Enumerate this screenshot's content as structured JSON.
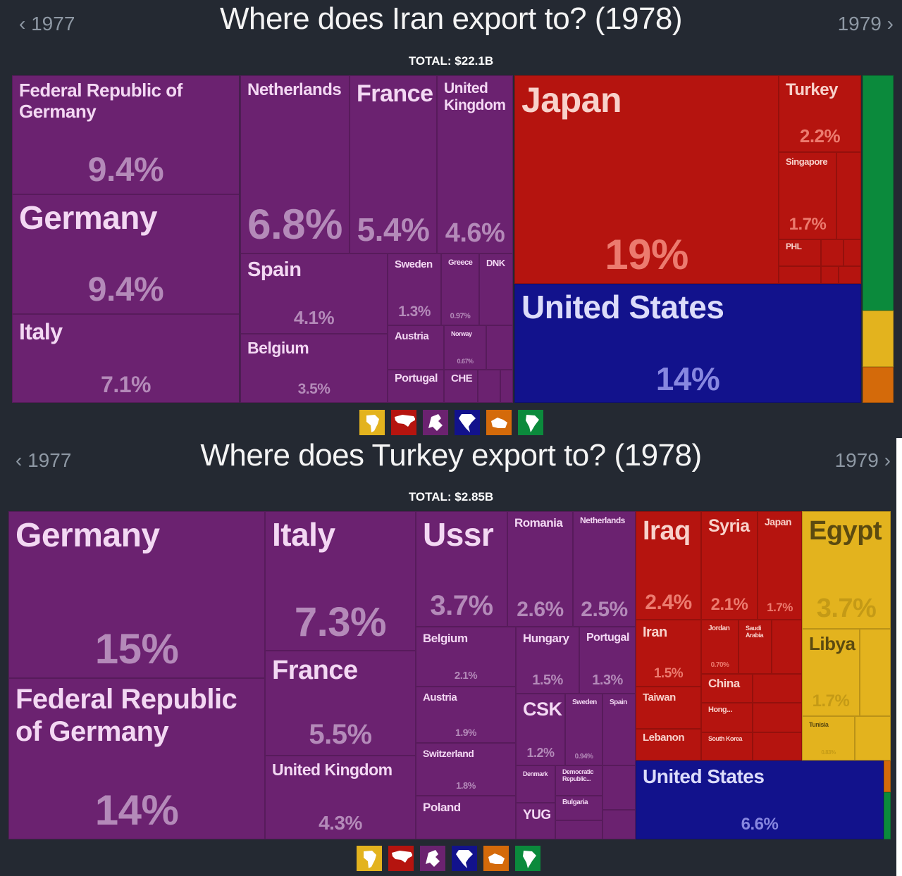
{
  "colors": {
    "europe": "#6b2270",
    "asia": "#b5140f",
    "namerica": "#12128c",
    "samerica": "#0b8a3c",
    "africa": "#e3b31e",
    "oceania": "#d46a0a"
  },
  "iran": {
    "prev": "‹ 1977",
    "next": "1979 ›",
    "title": "Where does Iran export to? (1978)",
    "total": "TOTAL: $22.1B",
    "cells": [
      {
        "name": "Federal Republic of Germany",
        "pct": "9.4%",
        "region": "europe"
      },
      {
        "name": "Germany",
        "pct": "9.4%",
        "region": "europe"
      },
      {
        "name": "Italy",
        "pct": "7.1%",
        "region": "europe"
      },
      {
        "name": "Netherlands",
        "pct": "6.8%",
        "region": "europe"
      },
      {
        "name": "France",
        "pct": "5.4%",
        "region": "europe"
      },
      {
        "name": "United Kingdom",
        "pct": "4.6%",
        "region": "europe"
      },
      {
        "name": "Spain",
        "pct": "4.1%",
        "region": "europe"
      },
      {
        "name": "Belgium",
        "pct": "3.5%",
        "region": "europe"
      },
      {
        "name": "Sweden",
        "pct": "1.3%",
        "region": "europe"
      },
      {
        "name": "Greece",
        "pct": "0.97%",
        "region": "europe"
      },
      {
        "name": "DNK",
        "pct": "",
        "region": "europe"
      },
      {
        "name": "Austria",
        "pct": "",
        "region": "europe"
      },
      {
        "name": "Norway",
        "pct": "0.67%",
        "region": "europe"
      },
      {
        "name": "",
        "pct": "",
        "region": "europe"
      },
      {
        "name": "Portugal",
        "pct": "",
        "region": "europe"
      },
      {
        "name": "CHE",
        "pct": "",
        "region": "europe"
      },
      {
        "name": "",
        "pct": "",
        "region": "europe"
      },
      {
        "name": "",
        "pct": "",
        "region": "europe"
      },
      {
        "name": "Japan",
        "pct": "19%",
        "region": "asia"
      },
      {
        "name": "Turkey",
        "pct": "2.2%",
        "region": "asia"
      },
      {
        "name": "Singapore",
        "pct": "1.7%",
        "region": "asia"
      },
      {
        "name": "",
        "pct": "",
        "region": "asia"
      },
      {
        "name": "PHL",
        "pct": "",
        "region": "asia"
      },
      {
        "name": "",
        "pct": "",
        "region": "asia"
      },
      {
        "name": "",
        "pct": "",
        "region": "asia"
      },
      {
        "name": "",
        "pct": "",
        "region": "asia"
      },
      {
        "name": "",
        "pct": "",
        "region": "asia"
      },
      {
        "name": "",
        "pct": "",
        "region": "asia"
      },
      {
        "name": "United States",
        "pct": "14%",
        "region": "namerica"
      },
      {
        "name": "",
        "pct": "",
        "region": "samerica"
      },
      {
        "name": "",
        "pct": "",
        "region": "africa"
      },
      {
        "name": "",
        "pct": "",
        "region": "oceania"
      }
    ]
  },
  "turkey": {
    "prev": "‹ 1977",
    "next": "1979 ›",
    "title": "Where does Turkey export to? (1978)",
    "total": "TOTAL: $2.85B",
    "cells": [
      {
        "name": "Germany",
        "pct": "15%",
        "region": "europe"
      },
      {
        "name": "Federal Republic of Germany",
        "pct": "14%",
        "region": "europe"
      },
      {
        "name": "Italy",
        "pct": "7.3%",
        "region": "europe"
      },
      {
        "name": "France",
        "pct": "5.5%",
        "region": "europe"
      },
      {
        "name": "United Kingdom",
        "pct": "4.3%",
        "region": "europe"
      },
      {
        "name": "Ussr",
        "pct": "3.7%",
        "region": "europe"
      },
      {
        "name": "Romania",
        "pct": "2.6%",
        "region": "europe"
      },
      {
        "name": "Netherlands",
        "pct": "2.5%",
        "region": "europe"
      },
      {
        "name": "Belgium",
        "pct": "2.1%",
        "region": "europe"
      },
      {
        "name": "Austria",
        "pct": "1.9%",
        "region": "europe"
      },
      {
        "name": "Switzerland",
        "pct": "1.8%",
        "region": "europe"
      },
      {
        "name": "Poland",
        "pct": "",
        "region": "europe"
      },
      {
        "name": "Hungary",
        "pct": "1.5%",
        "region": "europe"
      },
      {
        "name": "Portugal",
        "pct": "1.3%",
        "region": "europe"
      },
      {
        "name": "CSK",
        "pct": "1.2%",
        "region": "europe"
      },
      {
        "name": "Sweden",
        "pct": "0.94%",
        "region": "europe"
      },
      {
        "name": "Spain",
        "pct": "",
        "region": "europe"
      },
      {
        "name": "Denmark",
        "pct": "",
        "region": "europe"
      },
      {
        "name": "Democratic Republic...",
        "pct": "",
        "region": "europe"
      },
      {
        "name": "Bulgaria",
        "pct": "",
        "region": "europe"
      },
      {
        "name": "YUG",
        "pct": "",
        "region": "europe"
      },
      {
        "name": "",
        "pct": "",
        "region": "europe"
      },
      {
        "name": "",
        "pct": "",
        "region": "europe"
      },
      {
        "name": "",
        "pct": "",
        "region": "europe"
      },
      {
        "name": "Iraq",
        "pct": "2.4%",
        "region": "asia"
      },
      {
        "name": "Syria",
        "pct": "2.1%",
        "region": "asia"
      },
      {
        "name": "Japan",
        "pct": "1.7%",
        "region": "asia"
      },
      {
        "name": "Iran",
        "pct": "1.5%",
        "region": "asia"
      },
      {
        "name": "Taiwan",
        "pct": "",
        "region": "asia"
      },
      {
        "name": "Lebanon",
        "pct": "",
        "region": "asia"
      },
      {
        "name": "Jordan",
        "pct": "0.70%",
        "region": "asia"
      },
      {
        "name": "Saudi Arabia",
        "pct": "",
        "region": "asia"
      },
      {
        "name": "",
        "pct": "",
        "region": "asia"
      },
      {
        "name": "China",
        "pct": "",
        "region": "asia"
      },
      {
        "name": "Hong...",
        "pct": "",
        "region": "asia"
      },
      {
        "name": "South Korea",
        "pct": "",
        "region": "asia"
      },
      {
        "name": "",
        "pct": "",
        "region": "asia"
      },
      {
        "name": "",
        "pct": "",
        "region": "asia"
      },
      {
        "name": "",
        "pct": "",
        "region": "asia"
      },
      {
        "name": "Egypt",
        "pct": "3.7%",
        "region": "africa"
      },
      {
        "name": "Libya",
        "pct": "1.7%",
        "region": "africa"
      },
      {
        "name": "",
        "pct": "",
        "region": "africa"
      },
      {
        "name": "Tunisia",
        "pct": "0.83%",
        "region": "africa"
      },
      {
        "name": "",
        "pct": "",
        "region": "africa"
      },
      {
        "name": "United States",
        "pct": "6.6%",
        "region": "namerica"
      },
      {
        "name": "",
        "pct": "",
        "region": "oceania"
      },
      {
        "name": "",
        "pct": "",
        "region": "samerica"
      }
    ]
  },
  "legend": [
    {
      "icon": "africa-icon",
      "region": "africa"
    },
    {
      "icon": "asia-icon",
      "region": "asia"
    },
    {
      "icon": "europe-icon",
      "region": "europe"
    },
    {
      "icon": "north-america-icon",
      "region": "namerica"
    },
    {
      "icon": "oceania-icon",
      "region": "oceania"
    },
    {
      "icon": "south-america-icon",
      "region": "samerica"
    }
  ]
}
